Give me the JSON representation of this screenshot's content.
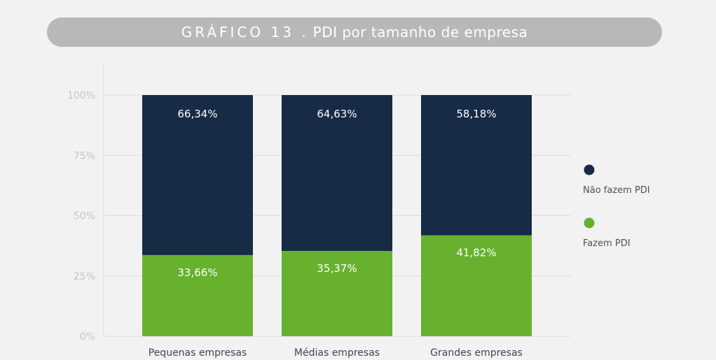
{
  "title": {
    "prefix": "GRÁFICO 13 .",
    "text": "PDI por tamanho de empresa"
  },
  "colors": {
    "nao_fazem": "#172a46",
    "fazem": "#67b12e",
    "gridline": "#dcdcdc",
    "pill": "#b8b8b8"
  },
  "chart_data": {
    "type": "bar",
    "stacked": true,
    "title": "GRÁFICO 13 . PDI por tamanho de empresa",
    "categories": [
      "Pequenas empresas",
      "Médias empresas",
      "Grandes empresas"
    ],
    "series": [
      {
        "name": "Fazem PDI",
        "values": [
          33.66,
          35.37,
          41.82
        ],
        "labels": [
          "33,66%",
          "35,37%",
          "41,82%"
        ]
      },
      {
        "name": "Não fazem PDI",
        "values": [
          66.34,
          64.63,
          58.18
        ],
        "labels": [
          "66,34%",
          "64,63%",
          "58,18%"
        ]
      }
    ],
    "yticks": [
      "0%",
      "25%",
      "50%",
      "75%",
      "100%"
    ],
    "ylim": [
      0,
      100
    ],
    "grid": true,
    "legend": "right"
  }
}
